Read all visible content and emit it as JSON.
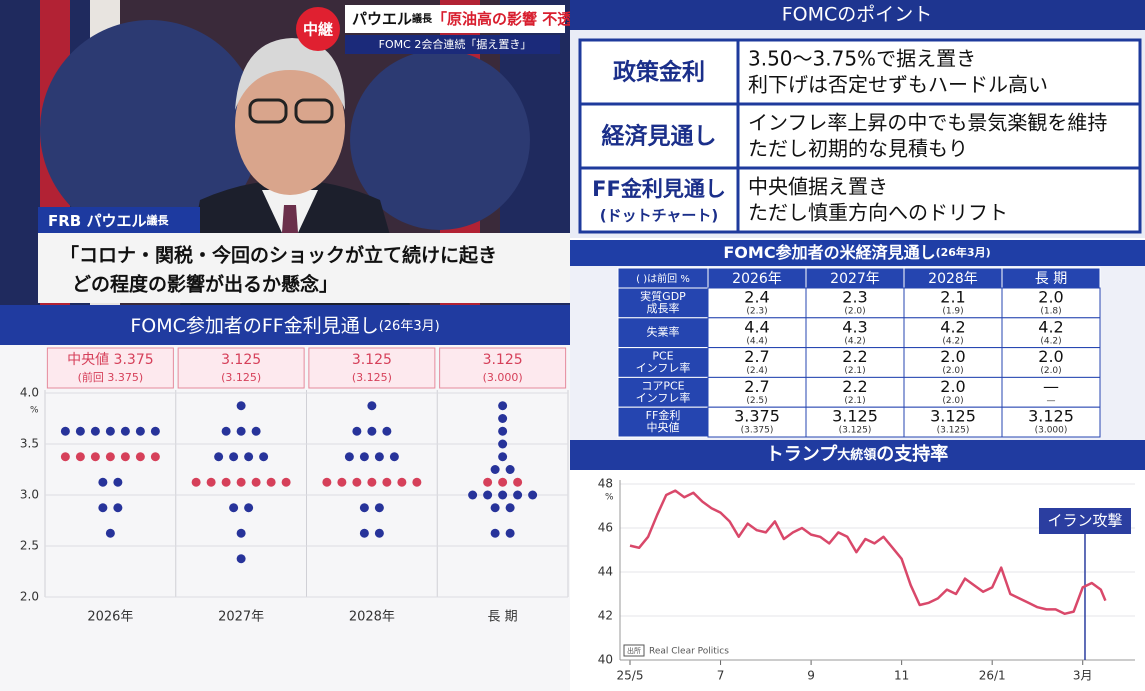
{
  "broadcast": {
    "live": "中継",
    "headline": [
      "パウエル",
      "議長",
      "「原油高の影響 不透明」"
    ],
    "subheadline": "FOMC 2会合連続「据え置き」",
    "speaker": [
      "FRB パウエル",
      "議長"
    ],
    "quote": [
      "「コロナ・関税・今回のショックが立て続けに起き",
      "どの程度の影響が出るか懸念」"
    ]
  },
  "points": {
    "title": "FOMCのポイント",
    "rows": [
      {
        "head": [
          "政策金利"
        ],
        "body": [
          "3.50〜3.75%で据え置き",
          "利下げは否定せずもハードル高い"
        ]
      },
      {
        "head": [
          "経済見通し"
        ],
        "body": [
          "インフレ率上昇の中でも景気楽観を維持",
          "ただし初期的な見積もり"
        ]
      },
      {
        "head": [
          "FF金利見通し",
          "(ドットチャート)"
        ],
        "body": [
          "中央値据え置き",
          "ただし慎重方向へのドリフト"
        ]
      }
    ]
  },
  "projections": {
    "title": "FOMC参加者の米経済見通し",
    "subtitle": "(26年3月)",
    "header": [
      "( )は前回 %",
      "2026年",
      "2027年",
      "2028年",
      "長 期"
    ],
    "rows": [
      {
        "label": [
          "実質GDP",
          "成長率"
        ],
        "cells": [
          [
            "2.4",
            "(2.3)"
          ],
          [
            "2.3",
            "(2.0)"
          ],
          [
            "2.1",
            "(1.9)"
          ],
          [
            "2.0",
            "(1.8)"
          ]
        ]
      },
      {
        "label": [
          "失業率"
        ],
        "cells": [
          [
            "4.4",
            "(4.4)"
          ],
          [
            "4.3",
            "(4.2)"
          ],
          [
            "4.2",
            "(4.2)"
          ],
          [
            "4.2",
            "(4.2)"
          ]
        ]
      },
      {
        "label": [
          "PCE",
          "インフレ率"
        ],
        "cells": [
          [
            "2.7",
            "(2.4)"
          ],
          [
            "2.2",
            "(2.1)"
          ],
          [
            "2.0",
            "(2.0)"
          ],
          [
            "2.0",
            "(2.0)"
          ]
        ]
      },
      {
        "label": [
          "コアPCE",
          "インフレ率"
        ],
        "cells": [
          [
            "2.7",
            "(2.5)"
          ],
          [
            "2.2",
            "(2.1)"
          ],
          [
            "2.0",
            "(2.0)"
          ],
          [
            "—",
            "—"
          ]
        ]
      },
      {
        "label": [
          "FF金利",
          "中央値"
        ],
        "cells": [
          [
            "3.375",
            "(3.375)"
          ],
          [
            "3.125",
            "(3.125)"
          ],
          [
            "3.125",
            "(3.125)"
          ],
          [
            "3.125",
            "(3.000)"
          ]
        ]
      }
    ]
  },
  "chart_data": [
    {
      "type": "dot",
      "title": "FOMC参加者のFF金利見通し",
      "subtitle": "(26年3月)",
      "y_unit": "%",
      "categories": [
        "2026年",
        "2027年",
        "2028年",
        "長 期"
      ],
      "median_labels": [
        [
          "中央値 3.375",
          "(前回 3.375)"
        ],
        [
          "3.125",
          "(3.125)"
        ],
        [
          "3.125",
          "(3.125)"
        ],
        [
          "3.125",
          "(3.000)"
        ]
      ],
      "medians": [
        3.375,
        3.125,
        3.125,
        3.125
      ],
      "values": [
        [
          3.625,
          3.625,
          3.625,
          3.625,
          3.625,
          3.625,
          3.625,
          3.375,
          3.375,
          3.375,
          3.375,
          3.375,
          3.375,
          3.375,
          3.125,
          3.125,
          2.875,
          2.875,
          2.625
        ],
        [
          3.875,
          3.625,
          3.625,
          3.625,
          3.375,
          3.375,
          3.375,
          3.375,
          3.125,
          3.125,
          3.125,
          3.125,
          3.125,
          3.125,
          3.125,
          2.875,
          2.875,
          2.625,
          2.375
        ],
        [
          3.875,
          3.625,
          3.625,
          3.625,
          3.375,
          3.375,
          3.375,
          3.375,
          3.125,
          3.125,
          3.125,
          3.125,
          3.125,
          3.125,
          3.125,
          2.875,
          2.875,
          2.625,
          2.625
        ],
        [
          3.875,
          3.75,
          3.625,
          3.5,
          3.375,
          3.25,
          3.25,
          3.125,
          3.125,
          3.125,
          3,
          3,
          3,
          3,
          3,
          2.875,
          2.875,
          2.625,
          2.625
        ]
      ],
      "color": "#27339a",
      "median_color": "#d6405a",
      "ylim": [
        2,
        4
      ],
      "yticks": [
        {
          "value": 2,
          "label": "2.0"
        },
        {
          "value": 2.5,
          "label": "2.5"
        },
        {
          "value": 3,
          "label": "3.0"
        },
        {
          "value": 3.5,
          "label": "3.5"
        },
        {
          "value": 4,
          "label": "4.0"
        }
      ],
      "grid": true
    },
    {
      "type": "line",
      "title": [
        "トランプ",
        "大統領",
        "の支持率"
      ],
      "y_unit": "%",
      "source": [
        "出所",
        "Real Clear Politics"
      ],
      "x": [
        0,
        0.2,
        0.4,
        0.6,
        0.8,
        1.0,
        1.2,
        1.4,
        1.6,
        1.8,
        2.0,
        2.2,
        2.4,
        2.6,
        2.8,
        3.0,
        3.2,
        3.4,
        3.6,
        3.8,
        4.0,
        4.2,
        4.4,
        4.6,
        4.8,
        5.0,
        5.2,
        5.4,
        5.6,
        5.8,
        6.0,
        6.2,
        6.4,
        6.6,
        6.8,
        7.0,
        7.2,
        7.4,
        7.6,
        7.8,
        8.0,
        8.2,
        8.4,
        8.6,
        8.8,
        9.0,
        9.2,
        9.4,
        9.6,
        9.8,
        10.0,
        10.2,
        10.4,
        10.5
      ],
      "values": [
        45.2,
        45.1,
        45.6,
        46.6,
        47.5,
        47.7,
        47.4,
        47.6,
        47.2,
        46.9,
        46.7,
        46.3,
        45.6,
        46.2,
        45.9,
        45.8,
        46.3,
        45.5,
        45.8,
        46.0,
        45.7,
        45.6,
        45.3,
        45.8,
        45.6,
        44.9,
        45.5,
        45.3,
        45.6,
        45.1,
        44.6,
        43.4,
        42.5,
        42.6,
        42.8,
        43.2,
        43.0,
        43.7,
        43.4,
        43.1,
        43.3,
        44.2,
        43.0,
        42.8,
        42.6,
        42.4,
        42.3,
        42.3,
        42.1,
        42.2,
        43.3,
        43.5,
        43.2,
        42.7
      ],
      "color": "#d9486a",
      "xlim": [
        0,
        11
      ],
      "ylim": [
        40,
        48
      ],
      "xticks": [
        {
          "value": 0,
          "label": "25/5"
        },
        {
          "value": 2,
          "label": "7"
        },
        {
          "value": 4,
          "label": "9"
        },
        {
          "value": 6,
          "label": "11"
        },
        {
          "value": 8,
          "label": "26/1"
        },
        {
          "value": 10,
          "label": "3月"
        }
      ],
      "yticks": [
        40,
        42,
        44,
        46,
        48
      ],
      "grid": true,
      "annotations": [
        {
          "text": "イラン攻撃",
          "x": 10.05
        }
      ]
    }
  ]
}
